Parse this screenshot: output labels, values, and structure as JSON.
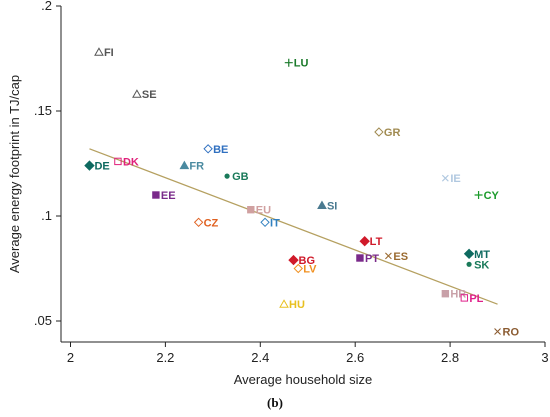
{
  "chart_data": {
    "type": "scatter",
    "xlabel": "Average household size",
    "ylabel": "Average energy footprint  in TJ/cap",
    "panel_label": "(b)",
    "xlim": [
      1.98,
      3.0
    ],
    "ylim": [
      0.04,
      0.2
    ],
    "xticks": [
      "2",
      "2.2",
      "2.4",
      "2.6",
      "2.8",
      "3"
    ],
    "xtick_values": [
      2.0,
      2.2,
      2.4,
      2.6,
      2.8,
      3.0
    ],
    "yticks": [
      ".05",
      ".1",
      ".15",
      ".2"
    ],
    "ytick_values": [
      0.05,
      0.1,
      0.15,
      0.2
    ],
    "grid": false,
    "trendline": {
      "x": [
        2.04,
        2.9
      ],
      "y": [
        0.132,
        0.058
      ],
      "color": "#b5a060"
    },
    "points": [
      {
        "label": "FI",
        "x": 2.06,
        "y": 0.178,
        "marker": "triangle-open",
        "color": "#555555"
      },
      {
        "label": "SE",
        "x": 2.14,
        "y": 0.158,
        "marker": "triangle-open",
        "color": "#555555"
      },
      {
        "label": "LU",
        "x": 2.46,
        "y": 0.173,
        "marker": "plus",
        "color": "#1a7a2a"
      },
      {
        "label": "GR",
        "x": 2.65,
        "y": 0.14,
        "marker": "diamond-open",
        "color": "#a08a50"
      },
      {
        "label": "BE",
        "x": 2.29,
        "y": 0.132,
        "marker": "diamond-open",
        "color": "#3070c0"
      },
      {
        "label": "DK",
        "x": 2.1,
        "y": 0.126,
        "marker": "square-open",
        "color": "#e0207a"
      },
      {
        "label": "DE",
        "x": 2.04,
        "y": 0.124,
        "marker": "diamond",
        "color": "#0e6a60"
      },
      {
        "label": "FR",
        "x": 2.24,
        "y": 0.124,
        "marker": "triangle",
        "color": "#4a8aa0"
      },
      {
        "label": "GB",
        "x": 2.33,
        "y": 0.119,
        "marker": "circle",
        "color": "#1a7a5a"
      },
      {
        "label": "IE",
        "x": 2.79,
        "y": 0.118,
        "marker": "x",
        "color": "#b0c8e0"
      },
      {
        "label": "CY",
        "x": 2.86,
        "y": 0.11,
        "marker": "plus",
        "color": "#1a9a2a"
      },
      {
        "label": "EE",
        "x": 2.18,
        "y": 0.11,
        "marker": "square",
        "color": "#7a2a8a"
      },
      {
        "label": "SI",
        "x": 2.53,
        "y": 0.105,
        "marker": "triangle",
        "color": "#4a7a90"
      },
      {
        "label": "EU",
        "x": 2.38,
        "y": 0.103,
        "marker": "square",
        "color": "#d0a0a0"
      },
      {
        "label": "CZ",
        "x": 2.27,
        "y": 0.097,
        "marker": "diamond-open",
        "color": "#e06020"
      },
      {
        "label": "IT",
        "x": 2.41,
        "y": 0.097,
        "marker": "diamond-open",
        "color": "#3080c0"
      },
      {
        "label": "LT",
        "x": 2.62,
        "y": 0.088,
        "marker": "diamond",
        "color": "#d01a2a"
      },
      {
        "label": "MT",
        "x": 2.84,
        "y": 0.082,
        "marker": "diamond",
        "color": "#0e6a60"
      },
      {
        "label": "ES",
        "x": 2.67,
        "y": 0.081,
        "marker": "x",
        "color": "#9a6a30"
      },
      {
        "label": "PT",
        "x": 2.61,
        "y": 0.08,
        "marker": "square",
        "color": "#7a2a8a"
      },
      {
        "label": "BG",
        "x": 2.47,
        "y": 0.079,
        "marker": "diamond",
        "color": "#d01a2a"
      },
      {
        "label": "SK",
        "x": 2.84,
        "y": 0.077,
        "marker": "circle",
        "color": "#1a7a5a"
      },
      {
        "label": "LV",
        "x": 2.48,
        "y": 0.075,
        "marker": "diamond-open",
        "color": "#f09020"
      },
      {
        "label": "HR",
        "x": 2.79,
        "y": 0.063,
        "marker": "square",
        "color": "#c8a0a8"
      },
      {
        "label": "PL",
        "x": 2.83,
        "y": 0.061,
        "marker": "square-open",
        "color": "#e0208a"
      },
      {
        "label": "HU",
        "x": 2.45,
        "y": 0.058,
        "marker": "triangle-open",
        "color": "#e8c020"
      },
      {
        "label": "RO",
        "x": 2.9,
        "y": 0.045,
        "marker": "x",
        "color": "#8a5a30"
      }
    ]
  }
}
